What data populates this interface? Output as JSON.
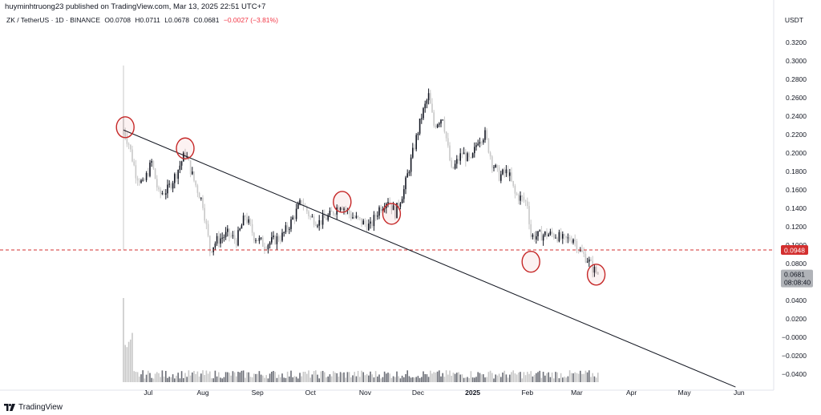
{
  "header": {
    "published": "huyminhtruong23 published on TradingView.com, Mar 13, 2025 22:51 UTC+7"
  },
  "legend": {
    "symbol": "ZK / TetherUS · 1D · BINANCE",
    "open": "O0.0708",
    "high": "H0.0711",
    "low": "L0.0678",
    "close": "C0.0681",
    "change": "−0.0027 (−3.81%)",
    "change_color": "#f23645"
  },
  "axis": {
    "currency": "USDT"
  },
  "footer": {
    "brand": "TradingView"
  },
  "colors": {
    "up": "#131722",
    "down": "#c8c8c8",
    "trendline": "#131722",
    "level": "#d32f2f",
    "circle": "#c62828",
    "last_price_bg": "#b0b3b8"
  },
  "chart_data": {
    "type": "candlestick",
    "y_axis": {
      "ticks": [
        "0.3200",
        "0.3000",
        "0.2800",
        "0.2600",
        "0.2400",
        "0.2200",
        "0.2000",
        "0.1800",
        "0.1600",
        "0.1400",
        "0.1200",
        "0.1000",
        "0.0800",
        "0.0400",
        "0.0200",
        "−0.0000",
        "−0.0200",
        "−0.0400"
      ]
    },
    "x_axis": {
      "labels": [
        "Jul",
        "Aug",
        "Sep",
        "Oct",
        "Nov",
        "Dec",
        "2025",
        "Feb",
        "Mar",
        "Apr",
        "May",
        "Jun"
      ]
    },
    "horizontal_level": {
      "value": 0.0948,
      "label": "0.0948"
    },
    "last_price": {
      "value": 0.0681,
      "label": "0.0681",
      "countdown": "08:08:40"
    },
    "trendline": {
      "start": {
        "date": "2024-06-17",
        "value": 0.225
      },
      "end": {
        "date": "2025-05-30",
        "value": -0.054
      }
    },
    "marked_touches": [
      {
        "date": "2024-06-18",
        "value": 0.228
      },
      {
        "date": "2024-07-22",
        "value": 0.205
      },
      {
        "date": "2024-10-19",
        "value": 0.147
      },
      {
        "date": "2024-11-16",
        "value": 0.134
      },
      {
        "date": "2025-02-03",
        "value": 0.082
      },
      {
        "date": "2025-03-12",
        "value": 0.068
      }
    ],
    "price_path": [
      [
        "2024-06-17",
        0.225
      ],
      [
        "2024-06-20",
        0.21
      ],
      [
        "2024-06-24",
        0.178
      ],
      [
        "2024-06-28",
        0.165
      ],
      [
        "2024-07-03",
        0.19
      ],
      [
        "2024-07-07",
        0.155
      ],
      [
        "2024-07-12",
        0.16
      ],
      [
        "2024-07-17",
        0.178
      ],
      [
        "2024-07-22",
        0.2
      ],
      [
        "2024-07-27",
        0.17
      ],
      [
        "2024-08-01",
        0.145
      ],
      [
        "2024-08-05",
        0.095
      ],
      [
        "2024-08-09",
        0.105
      ],
      [
        "2024-08-15",
        0.112
      ],
      [
        "2024-08-20",
        0.105
      ],
      [
        "2024-08-25",
        0.132
      ],
      [
        "2024-08-30",
        0.11
      ],
      [
        "2024-09-05",
        0.1
      ],
      [
        "2024-09-10",
        0.105
      ],
      [
        "2024-09-15",
        0.11
      ],
      [
        "2024-09-20",
        0.125
      ],
      [
        "2024-09-26",
        0.148
      ],
      [
        "2024-10-01",
        0.13
      ],
      [
        "2024-10-06",
        0.125
      ],
      [
        "2024-10-12",
        0.132
      ],
      [
        "2024-10-18",
        0.145
      ],
      [
        "2024-10-24",
        0.132
      ],
      [
        "2024-10-30",
        0.125
      ],
      [
        "2024-11-04",
        0.12
      ],
      [
        "2024-11-09",
        0.14
      ],
      [
        "2024-11-14",
        0.15
      ],
      [
        "2024-11-18",
        0.135
      ],
      [
        "2024-11-23",
        0.16
      ],
      [
        "2024-11-28",
        0.2
      ],
      [
        "2024-12-03",
        0.24
      ],
      [
        "2024-12-07",
        0.262
      ],
      [
        "2024-12-10",
        0.23
      ],
      [
        "2024-12-15",
        0.24
      ],
      [
        "2024-12-20",
        0.18
      ],
      [
        "2024-12-26",
        0.2
      ],
      [
        "2024-12-31",
        0.19
      ],
      [
        "2025-01-04",
        0.215
      ],
      [
        "2025-01-08",
        0.22
      ],
      [
        "2025-01-12",
        0.19
      ],
      [
        "2025-01-16",
        0.175
      ],
      [
        "2025-01-21",
        0.18
      ],
      [
        "2025-01-25",
        0.155
      ],
      [
        "2025-01-29",
        0.15
      ],
      [
        "2025-02-01",
        0.145
      ],
      [
        "2025-02-03",
        0.11
      ],
      [
        "2025-02-07",
        0.11
      ],
      [
        "2025-02-12",
        0.112
      ],
      [
        "2025-02-17",
        0.111
      ],
      [
        "2025-02-22",
        0.105
      ],
      [
        "2025-02-27",
        0.108
      ],
      [
        "2025-03-03",
        0.093
      ],
      [
        "2025-03-07",
        0.085
      ],
      [
        "2025-03-10",
        0.075
      ],
      [
        "2025-03-13",
        0.0681
      ]
    ]
  }
}
